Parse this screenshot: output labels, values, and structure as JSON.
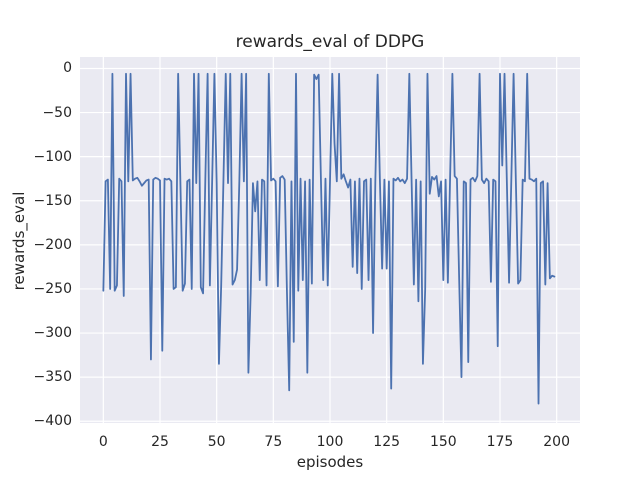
{
  "figure": {
    "background": "#ffffff",
    "text_color": "#262626"
  },
  "chart_data": {
    "type": "line",
    "title": "rewards_eval of DDPG",
    "xlabel": "episodes",
    "ylabel": "rewards_eval",
    "legend": "none",
    "grid": true,
    "style": "seaborn-darkgrid",
    "background": "#EAEAF2",
    "grid_color": "#FFFFFF",
    "line_color": "#4C72B0",
    "line_width": 1.8,
    "xlim": [
      -10.3,
      210.3
    ],
    "ylim": [
      -402,
      13
    ],
    "xticks": [
      0,
      25,
      50,
      75,
      100,
      125,
      150,
      175,
      200
    ],
    "xtick_labels": [
      "0",
      "25",
      "50",
      "75",
      "100",
      "125",
      "150",
      "175",
      "200"
    ],
    "yticks": [
      0,
      -50,
      -100,
      -150,
      -200,
      -250,
      -300,
      -350,
      -400
    ],
    "ytick_labels": [
      "0",
      "−50",
      "−100",
      "−150",
      "−200",
      "−250",
      "−300",
      "−350",
      "−400"
    ],
    "x_start": 0,
    "x_step": 1,
    "values": [
      -252,
      -128,
      -126,
      -250,
      -6,
      -252,
      -246,
      -125,
      -128,
      -258,
      -6,
      -128,
      -6,
      -127,
      -125,
      -124,
      -128,
      -133,
      -130,
      -127,
      -126,
      -330,
      -126,
      -124,
      -125,
      -127,
      -320,
      -125,
      -126,
      -125,
      -128,
      -250,
      -248,
      -6,
      -130,
      -252,
      -244,
      -128,
      -126,
      -250,
      -6,
      -130,
      -6,
      -248,
      -255,
      -125,
      -6,
      -246,
      -128,
      -6,
      -130,
      -335,
      -245,
      -125,
      -6,
      -130,
      -6,
      -245,
      -240,
      -228,
      -128,
      -6,
      -128,
      -6,
      -345,
      -255,
      -130,
      -162,
      -128,
      -240,
      -126,
      -128,
      -246,
      -6,
      -127,
      -125,
      -128,
      -247,
      -124,
      -122,
      -126,
      -253,
      -365,
      -128,
      -310,
      -6,
      -252,
      -125,
      -240,
      -128,
      -345,
      -126,
      -244,
      -7,
      -12,
      -7,
      -126,
      -240,
      -125,
      -246,
      -128,
      -6,
      -85,
      -128,
      -6,
      -125,
      -120,
      -128,
      -135,
      -126,
      -225,
      -128,
      -232,
      -125,
      -250,
      -128,
      -126,
      -240,
      -125,
      -300,
      -128,
      -7,
      -125,
      -227,
      -126,
      -227,
      -128,
      -363,
      -125,
      -127,
      -124,
      -128,
      -126,
      -130,
      -125,
      -6,
      -128,
      -245,
      -126,
      -264,
      -128,
      -335,
      -250,
      -6,
      -142,
      -123,
      -126,
      -122,
      -145,
      -128,
      -240,
      -126,
      -243,
      -122,
      -6,
      -122,
      -125,
      -240,
      -350,
      -128,
      -130,
      -333,
      -126,
      -124,
      -128,
      -122,
      -6,
      -126,
      -130,
      -125,
      -128,
      -242,
      -126,
      -128,
      -315,
      -6,
      -110,
      -6,
      -125,
      -243,
      -126,
      -6,
      -128,
      -244,
      -240,
      -126,
      -128,
      -6,
      -125,
      -126,
      -128,
      -125,
      -380,
      -130,
      -128,
      -245,
      -130,
      -238,
      -235,
      -236
    ]
  }
}
